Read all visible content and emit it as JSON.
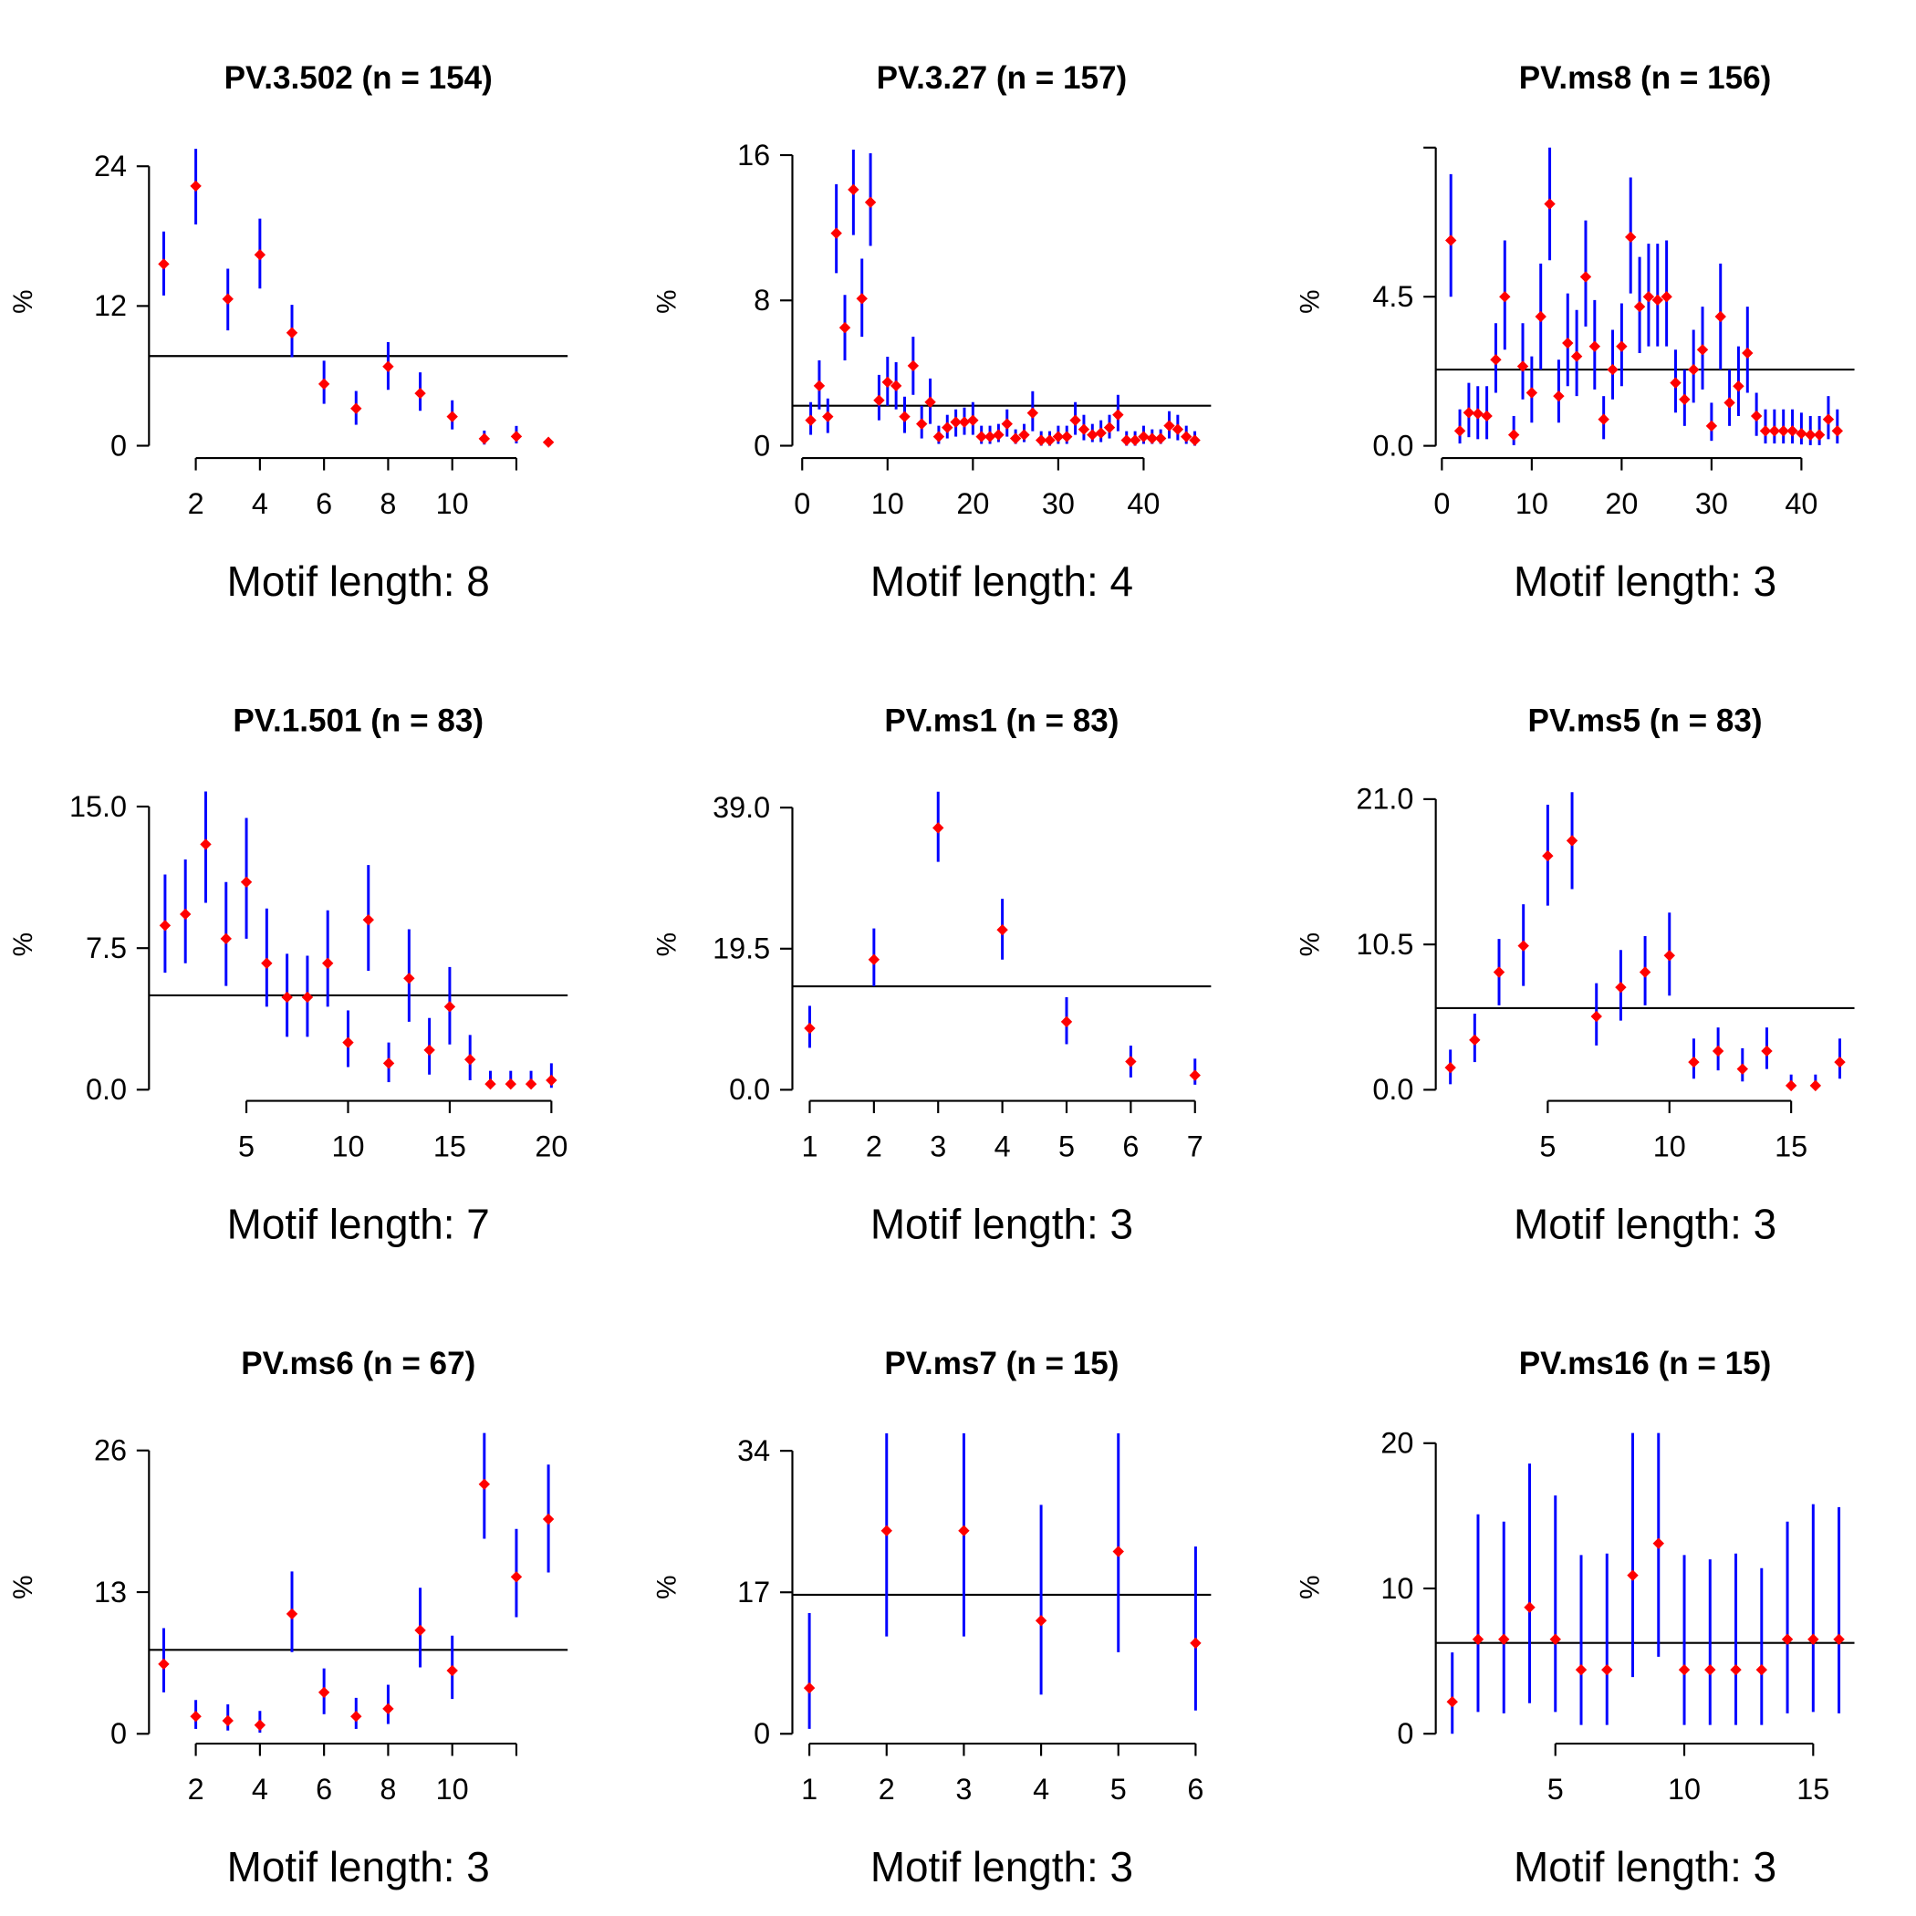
{
  "chart_data": [
    {
      "type": "errorbar",
      "title": "PV.3.502 (n = 154)",
      "xlabel": "Motif length: 8",
      "ylabel": "%",
      "point_color": "#ff0000",
      "bar_color": "#0000ff",
      "line_color": "#000000",
      "x": [
        1,
        2,
        3,
        4,
        5,
        6,
        7,
        8,
        9,
        10,
        11,
        12,
        13
      ],
      "values": [
        15.6,
        22.3,
        12.6,
        16.4,
        9.7,
        5.3,
        3.2,
        6.8,
        4.5,
        2.5,
        0.6,
        0.8,
        0.3
      ],
      "upper": [
        18.4,
        25.5,
        15.2,
        19.5,
        12.1,
        7.3,
        4.7,
        8.9,
        6.3,
        3.9,
        1.3,
        1.7,
        0.6
      ],
      "lower": [
        12.9,
        19.0,
        9.9,
        13.5,
        7.6,
        3.6,
        1.8,
        4.8,
        3.0,
        1.4,
        0.1,
        0.2,
        0.0
      ],
      "hline": 7.7,
      "xlim": [
        0.54,
        13.6
      ],
      "ylim": [
        -1.06,
        25.8
      ],
      "xticks": [
        2,
        4,
        6,
        8,
        10,
        {
          "value": 12,
          "label": null
        }
      ],
      "yticks": [
        0,
        12,
        24
      ]
    },
    {
      "type": "errorbar",
      "title": "PV.3.27 (n = 157)",
      "xlabel": "Motif length: 4",
      "ylabel": "%",
      "point_color": "#ff0000",
      "bar_color": "#0000ff",
      "line_color": "#000000",
      "x": [
        1,
        2,
        3,
        4,
        5,
        6,
        7,
        8,
        9,
        10,
        11,
        12,
        13,
        14,
        15,
        16,
        17,
        18,
        19,
        20,
        21,
        22,
        23,
        24,
        25,
        26,
        27,
        28,
        29,
        30,
        31,
        32,
        33,
        34,
        35,
        36,
        37,
        38,
        39,
        40,
        41,
        42,
        43,
        44,
        45,
        46
      ],
      "values": [
        1.4,
        3.3,
        1.6,
        11.7,
        6.5,
        14.1,
        8.1,
        13.4,
        2.5,
        3.5,
        3.3,
        1.6,
        4.4,
        1.2,
        2.4,
        0.5,
        1.0,
        1.3,
        1.3,
        1.4,
        0.5,
        0.5,
        0.6,
        1.2,
        0.4,
        0.6,
        1.8,
        0.3,
        0.3,
        0.5,
        0.5,
        1.4,
        0.9,
        0.6,
        0.7,
        1.0,
        1.7,
        0.3,
        0.3,
        0.5,
        0.4,
        0.4,
        1.1,
        0.9,
        0.5,
        0.3
      ],
      "upper": [
        2.4,
        4.7,
        2.6,
        14.4,
        8.3,
        16.3,
        10.3,
        16.1,
        3.9,
        4.9,
        4.6,
        2.7,
        6.0,
        2.2,
        3.7,
        1.1,
        1.7,
        2.0,
        2.1,
        2.4,
        1.1,
        1.1,
        1.2,
        2.0,
        0.9,
        1.2,
        3.0,
        0.8,
        0.8,
        1.1,
        1.1,
        2.4,
        1.7,
        1.2,
        1.4,
        1.7,
        2.8,
        0.8,
        0.8,
        1.1,
        0.9,
        0.9,
        1.9,
        1.7,
        1.1,
        0.8
      ],
      "lower": [
        0.6,
        2.0,
        0.7,
        9.5,
        4.7,
        11.6,
        6.0,
        11.0,
        1.4,
        2.2,
        2.0,
        0.7,
        2.8,
        0.4,
        1.2,
        0.1,
        0.4,
        0.5,
        0.6,
        0.6,
        0.1,
        0.1,
        0.2,
        0.5,
        0.1,
        0.2,
        0.8,
        0.0,
        0.0,
        0.1,
        0.1,
        0.6,
        0.3,
        0.2,
        0.2,
        0.4,
        0.8,
        0.0,
        0.0,
        0.1,
        0.1,
        0.1,
        0.4,
        0.3,
        0.1,
        0.0
      ],
      "hline": 2.2,
      "xlim": [
        -1.15,
        47.9
      ],
      "ylim": [
        -0.68,
        16.54
      ],
      "xticks": [
        0,
        10,
        20,
        30,
        40
      ],
      "yticks": [
        0,
        8,
        16
      ]
    },
    {
      "type": "errorbar",
      "title": "PV.ms8 (n = 156)",
      "xlabel": "Motif length: 3",
      "ylabel": "%",
      "point_color": "#ff0000",
      "bar_color": "#0000ff",
      "line_color": "#000000",
      "x": [
        1,
        2,
        3,
        4,
        5,
        6,
        7,
        8,
        9,
        10,
        11,
        12,
        13,
        14,
        15,
        16,
        17,
        18,
        19,
        20,
        21,
        22,
        23,
        24,
        25,
        26,
        27,
        28,
        29,
        30,
        31,
        32,
        33,
        34,
        35,
        36,
        37,
        38,
        39,
        40,
        41,
        42,
        43,
        44
      ],
      "values": [
        6.2,
        0.45,
        1.0,
        0.97,
        0.9,
        2.6,
        4.5,
        0.33,
        2.4,
        1.6,
        3.9,
        7.3,
        1.5,
        3.1,
        2.7,
        5.1,
        3.0,
        0.8,
        2.3,
        3.0,
        6.3,
        4.2,
        4.5,
        4.4,
        4.5,
        1.9,
        1.4,
        2.3,
        2.9,
        0.6,
        3.9,
        1.3,
        1.8,
        2.8,
        0.9,
        0.45,
        0.45,
        0.45,
        0.45,
        0.37,
        0.33,
        0.33,
        0.8,
        0.45
      ],
      "upper": [
        8.2,
        1.1,
        1.9,
        1.8,
        1.8,
        3.7,
        6.2,
        0.9,
        3.7,
        2.7,
        5.5,
        9.0,
        2.6,
        4.6,
        4.1,
        6.8,
        4.4,
        1.5,
        3.5,
        4.3,
        8.1,
        5.7,
        6.1,
        6.1,
        6.2,
        2.9,
        2.3,
        3.5,
        4.2,
        1.3,
        5.5,
        2.3,
        3.0,
        4.2,
        1.6,
        1.1,
        1.1,
        1.1,
        1.1,
        1.0,
        0.9,
        0.9,
        1.5,
        1.1
      ],
      "lower": [
        4.5,
        0.07,
        0.26,
        0.2,
        0.2,
        1.6,
        2.9,
        0.02,
        1.4,
        0.7,
        2.3,
        5.6,
        0.7,
        1.8,
        1.5,
        3.6,
        1.7,
        0.2,
        1.4,
        1.8,
        4.6,
        2.8,
        3.0,
        3.0,
        3.0,
        1.0,
        0.6,
        1.3,
        1.7,
        0.15,
        2.3,
        0.6,
        0.9,
        1.6,
        0.3,
        0.07,
        0.07,
        0.07,
        0.07,
        0.04,
        0.02,
        0.02,
        0.2,
        0.07
      ],
      "hline": 2.3,
      "xlim": [
        -0.68,
        45.9
      ],
      "ylim": [
        -0.37,
        9.07
      ],
      "xticks": [
        0,
        10,
        20,
        30,
        40
      ],
      "yticks": [
        {
          "value": 0,
          "label": "0.0"
        },
        4.5,
        {
          "value": 9,
          "label": null
        }
      ]
    },
    {
      "type": "errorbar",
      "title": "PV.1.501 (n = 83)",
      "xlabel": "Motif length: 7",
      "ylabel": "%",
      "point_color": "#ff0000",
      "bar_color": "#0000ff",
      "line_color": "#000000",
      "x": [
        1,
        2,
        3,
        4,
        5,
        6,
        7,
        8,
        9,
        10,
        11,
        12,
        13,
        14,
        15,
        16,
        17,
        18,
        19,
        20
      ],
      "values": [
        8.7,
        9.3,
        13.0,
        8.0,
        11.0,
        6.7,
        4.9,
        4.9,
        6.7,
        2.5,
        9.0,
        1.4,
        5.9,
        2.1,
        4.4,
        1.6,
        0.3,
        0.3,
        0.3,
        0.5
      ],
      "upper": [
        11.4,
        12.2,
        15.8,
        11.0,
        14.4,
        9.6,
        7.2,
        7.1,
        9.5,
        4.2,
        11.9,
        2.5,
        8.5,
        3.8,
        6.5,
        2.9,
        1.0,
        1.0,
        1.0,
        1.4
      ],
      "lower": [
        6.2,
        6.7,
        9.9,
        5.5,
        8.0,
        4.4,
        2.8,
        2.8,
        4.4,
        1.2,
        6.3,
        0.4,
        3.6,
        0.8,
        2.4,
        0.5,
        0.07,
        0.07,
        0.07,
        0.1
      ],
      "hline": 5,
      "xlim": [
        0.21,
        20.8
      ],
      "ylim": [
        -0.59,
        15.98
      ],
      "xticks": [
        5,
        10,
        15,
        20
      ],
      "yticks": [
        {
          "value": 0,
          "label": "0.0"
        },
        7.5,
        {
          "value": 15,
          "label": "15.0"
        }
      ]
    },
    {
      "type": "errorbar",
      "title": "PV.ms1 (n = 83)",
      "xlabel": "Motif length: 3",
      "ylabel": "%",
      "point_color": "#ff0000",
      "bar_color": "#0000ff",
      "line_color": "#000000",
      "x": [
        1,
        2,
        3,
        4,
        5,
        6,
        7
      ],
      "values": [
        8.5,
        18.0,
        36.2,
        22.1,
        9.4,
        3.9,
        2.0
      ],
      "upper": [
        11.6,
        22.3,
        41.2,
        26.4,
        12.8,
        6.1,
        4.3
      ],
      "lower": [
        5.8,
        14.3,
        31.5,
        18.0,
        6.3,
        1.7,
        0.7
      ],
      "hline": 14.3,
      "xlim": [
        0.73,
        7.25
      ],
      "ylim": [
        -1.53,
        41.7
      ],
      "xticks": [
        1,
        2,
        3,
        4,
        5,
        6,
        7
      ],
      "yticks": [
        {
          "value": 0,
          "label": "0.0"
        },
        19.5,
        {
          "value": 39,
          "label": "39.0"
        }
      ]
    },
    {
      "type": "errorbar",
      "title": "PV.ms5 (n = 83)",
      "xlabel": "Motif length: 3",
      "ylabel": "%",
      "point_color": "#ff0000",
      "bar_color": "#0000ff",
      "line_color": "#000000",
      "x": [
        1,
        2,
        3,
        4,
        5,
        6,
        7,
        8,
        9,
        10,
        11,
        12,
        13,
        14,
        15,
        16,
        17
      ],
      "values": [
        1.6,
        3.6,
        8.5,
        10.4,
        16.9,
        18.0,
        5.3,
        7.4,
        8.5,
        9.7,
        2.0,
        2.8,
        1.5,
        2.8,
        0.3,
        0.3,
        2.0
      ],
      "upper": [
        2.9,
        5.5,
        10.9,
        13.4,
        20.6,
        21.5,
        7.7,
        10.1,
        11.1,
        12.8,
        3.7,
        4.5,
        3.0,
        4.5,
        1.1,
        1.1,
        3.7
      ],
      "lower": [
        0.4,
        2.0,
        6.1,
        7.5,
        13.3,
        14.5,
        3.2,
        5.0,
        6.1,
        6.8,
        0.8,
        1.4,
        0.6,
        1.5,
        0.1,
        0.1,
        0.8
      ],
      "hline": 5.9,
      "xlim": [
        0.4,
        17.6
      ],
      "ylim": [
        -0.8,
        21.8
      ],
      "xticks": [
        5,
        10,
        15
      ],
      "yticks": [
        {
          "value": 0,
          "label": "0.0"
        },
        10.5,
        {
          "value": 21,
          "label": "21.0"
        }
      ]
    },
    {
      "type": "errorbar",
      "title": "PV.ms6 (n = 67)",
      "xlabel": "Motif length: 3",
      "ylabel": "%",
      "point_color": "#ff0000",
      "bar_color": "#0000ff",
      "line_color": "#000000",
      "x": [
        1,
        2,
        3,
        4,
        5,
        6,
        7,
        8,
        9,
        10,
        11,
        12,
        13
      ],
      "values": [
        6.4,
        1.6,
        1.2,
        0.8,
        11.0,
        3.8,
        1.6,
        2.3,
        9.5,
        5.8,
        22.9,
        14.4,
        19.7
      ],
      "upper": [
        9.7,
        3.1,
        2.7,
        2.1,
        14.9,
        6.0,
        3.3,
        4.5,
        13.4,
        9.0,
        27.6,
        18.8,
        24.7
      ],
      "lower": [
        3.8,
        0.45,
        0.3,
        0.1,
        7.5,
        1.8,
        0.45,
        0.9,
        6.1,
        3.2,
        17.9,
        10.7,
        14.8
      ],
      "hline": 7.7,
      "xlim": [
        0.54,
        13.6
      ],
      "ylim": [
        -0.9,
        27.8
      ],
      "xticks": [
        2,
        4,
        6,
        8,
        10,
        {
          "value": 12,
          "label": null
        }
      ],
      "yticks": [
        0,
        13,
        26
      ]
    },
    {
      "type": "errorbar",
      "title": "PV.ms7 (n = 15)",
      "xlabel": "Motif length: 3",
      "ylabel": "%",
      "point_color": "#ff0000",
      "bar_color": "#0000ff",
      "line_color": "#000000",
      "x": [
        1,
        2,
        3,
        4,
        5,
        6
      ],
      "values": [
        5.5,
        24.4,
        24.4,
        13.6,
        21.9,
        10.9
      ],
      "upper": [
        14.5,
        36.1,
        36.1,
        27.5,
        36.1,
        22.5
      ],
      "lower": [
        0.6,
        11.7,
        11.7,
        4.7,
        9.8,
        2.8
      ],
      "hline": 16.7,
      "xlim": [
        0.78,
        6.2
      ],
      "ylim": [
        -1.18,
        36.4
      ],
      "xticks": [
        1,
        2,
        3,
        4,
        5,
        6
      ],
      "yticks": [
        0,
        17,
        34
      ]
    },
    {
      "type": "errorbar",
      "title": "PV.ms16 (n = 15)",
      "xlabel": "Motif length: 3",
      "ylabel": "%",
      "point_color": "#ff0000",
      "bar_color": "#0000ff",
      "line_color": "#000000",
      "x": [
        1,
        2,
        3,
        4,
        5,
        6,
        7,
        8,
        9,
        10,
        11,
        12,
        13,
        14,
        15,
        16
      ],
      "values": [
        2.2,
        6.5,
        6.5,
        8.7,
        6.5,
        4.4,
        4.4,
        10.9,
        13.1,
        4.4,
        4.4,
        4.4,
        4.4,
        6.5,
        6.5,
        6.5
      ],
      "upper": [
        5.6,
        15.1,
        14.6,
        18.6,
        16.4,
        12.3,
        12.4,
        20.7,
        20.7,
        12.3,
        12.0,
        12.4,
        11.4,
        14.6,
        15.8,
        15.6
      ],
      "lower": [
        0.0,
        1.5,
        1.4,
        2.1,
        1.5,
        0.6,
        0.6,
        3.9,
        5.3,
        0.6,
        0.6,
        0.6,
        0.6,
        1.4,
        1.5,
        1.4
      ],
      "hline": 6.25,
      "xlim": [
        0.36,
        16.6
      ],
      "ylim": [
        -0.68,
        20.85
      ],
      "xticks": [
        5,
        10,
        15
      ],
      "yticks": [
        0,
        10,
        20
      ]
    }
  ]
}
